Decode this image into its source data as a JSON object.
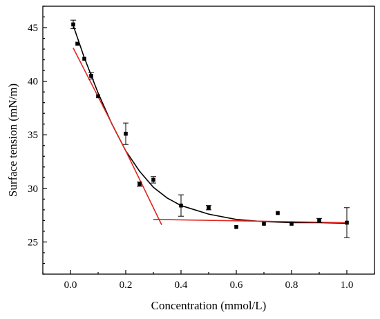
{
  "chart_data": {
    "type": "scatter",
    "title": "",
    "xlabel": "Concentration (mmol/L)",
    "ylabel": "Surface tension (mN/m)",
    "xlim": [
      -0.1,
      1.1
    ],
    "ylim": [
      22,
      47
    ],
    "xticks": [
      "0.0",
      "0.2",
      "0.4",
      "0.6",
      "0.8",
      "1.0"
    ],
    "yticks": [
      "25",
      "30",
      "35",
      "40",
      "45"
    ],
    "grid": false,
    "legend": "none",
    "series": [
      {
        "kind": "scatter",
        "color": "#000000",
        "x": [
          0.01,
          0.025,
          0.05,
          0.075,
          0.1,
          0.2,
          0.25,
          0.3,
          0.4,
          0.5,
          0.6,
          0.7,
          0.75,
          0.8,
          0.9,
          1.0
        ],
        "y": [
          45.3,
          43.5,
          42.1,
          40.5,
          38.6,
          35.1,
          30.4,
          30.8,
          28.4,
          28.2,
          26.4,
          26.7,
          27.7,
          26.7,
          27.0,
          26.8
        ],
        "error": [
          0.4,
          0.0,
          0.0,
          0.3,
          0.0,
          1.0,
          0.2,
          0.3,
          1.0,
          0.2,
          0.0,
          0.0,
          0.0,
          0.0,
          0.2,
          1.4
        ]
      },
      {
        "kind": "line",
        "color": "#000000",
        "x": [
          0.01,
          0.05,
          0.1,
          0.15,
          0.2,
          0.25,
          0.3,
          0.35,
          0.4,
          0.5,
          0.6,
          0.7,
          0.8,
          0.9,
          1.0
        ],
        "y": [
          45.2,
          42.2,
          38.9,
          36.0,
          33.5,
          31.6,
          30.1,
          29.1,
          28.4,
          27.6,
          27.1,
          26.9,
          26.8,
          26.8,
          26.75
        ]
      },
      {
        "kind": "line",
        "color": "#e0261e",
        "x": [
          0.01,
          0.2,
          0.33
        ],
        "y": [
          43.1,
          33.5,
          26.6
        ]
      },
      {
        "kind": "line",
        "color": "#e0261e",
        "x": [
          0.3,
          1.0
        ],
        "y": [
          27.1,
          26.8
        ]
      }
    ]
  }
}
